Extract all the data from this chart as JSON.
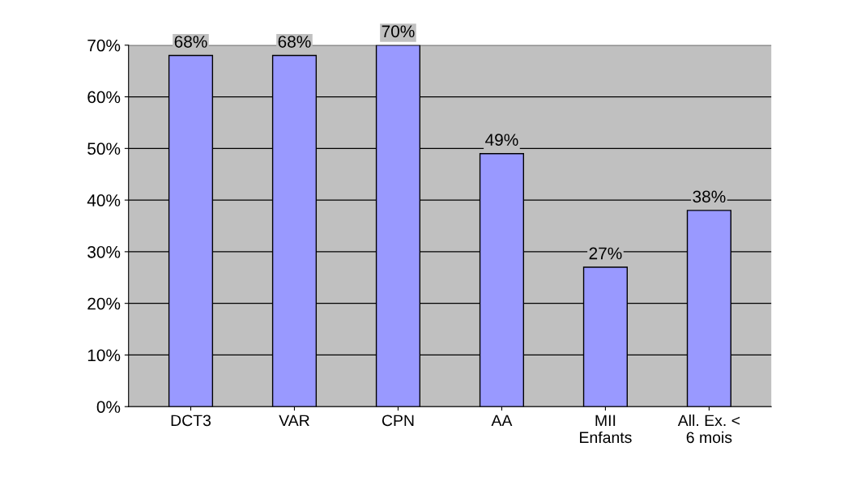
{
  "chart_data": {
    "type": "bar",
    "categories": [
      "DCT3",
      "VAR",
      "CPN",
      "AA",
      "MII\nEnfants",
      "All. Ex. <\n6 mois"
    ],
    "values": [
      68,
      68,
      70,
      49,
      27,
      38
    ],
    "value_labels": [
      "68%",
      "68%",
      "70%",
      "49%",
      "27%",
      "38%"
    ],
    "color": "#9999ff",
    "ylim": [
      0,
      70
    ],
    "yticks": [
      {
        "value": 0,
        "label": "0%"
      },
      {
        "value": 10,
        "label": "10%"
      },
      {
        "value": 20,
        "label": "20%"
      },
      {
        "value": 30,
        "label": "30%"
      },
      {
        "value": 40,
        "label": "40%"
      },
      {
        "value": 50,
        "label": "50%"
      },
      {
        "value": 60,
        "label": "60%"
      },
      {
        "value": 70,
        "label": "70%"
      }
    ],
    "grid": "y"
  }
}
